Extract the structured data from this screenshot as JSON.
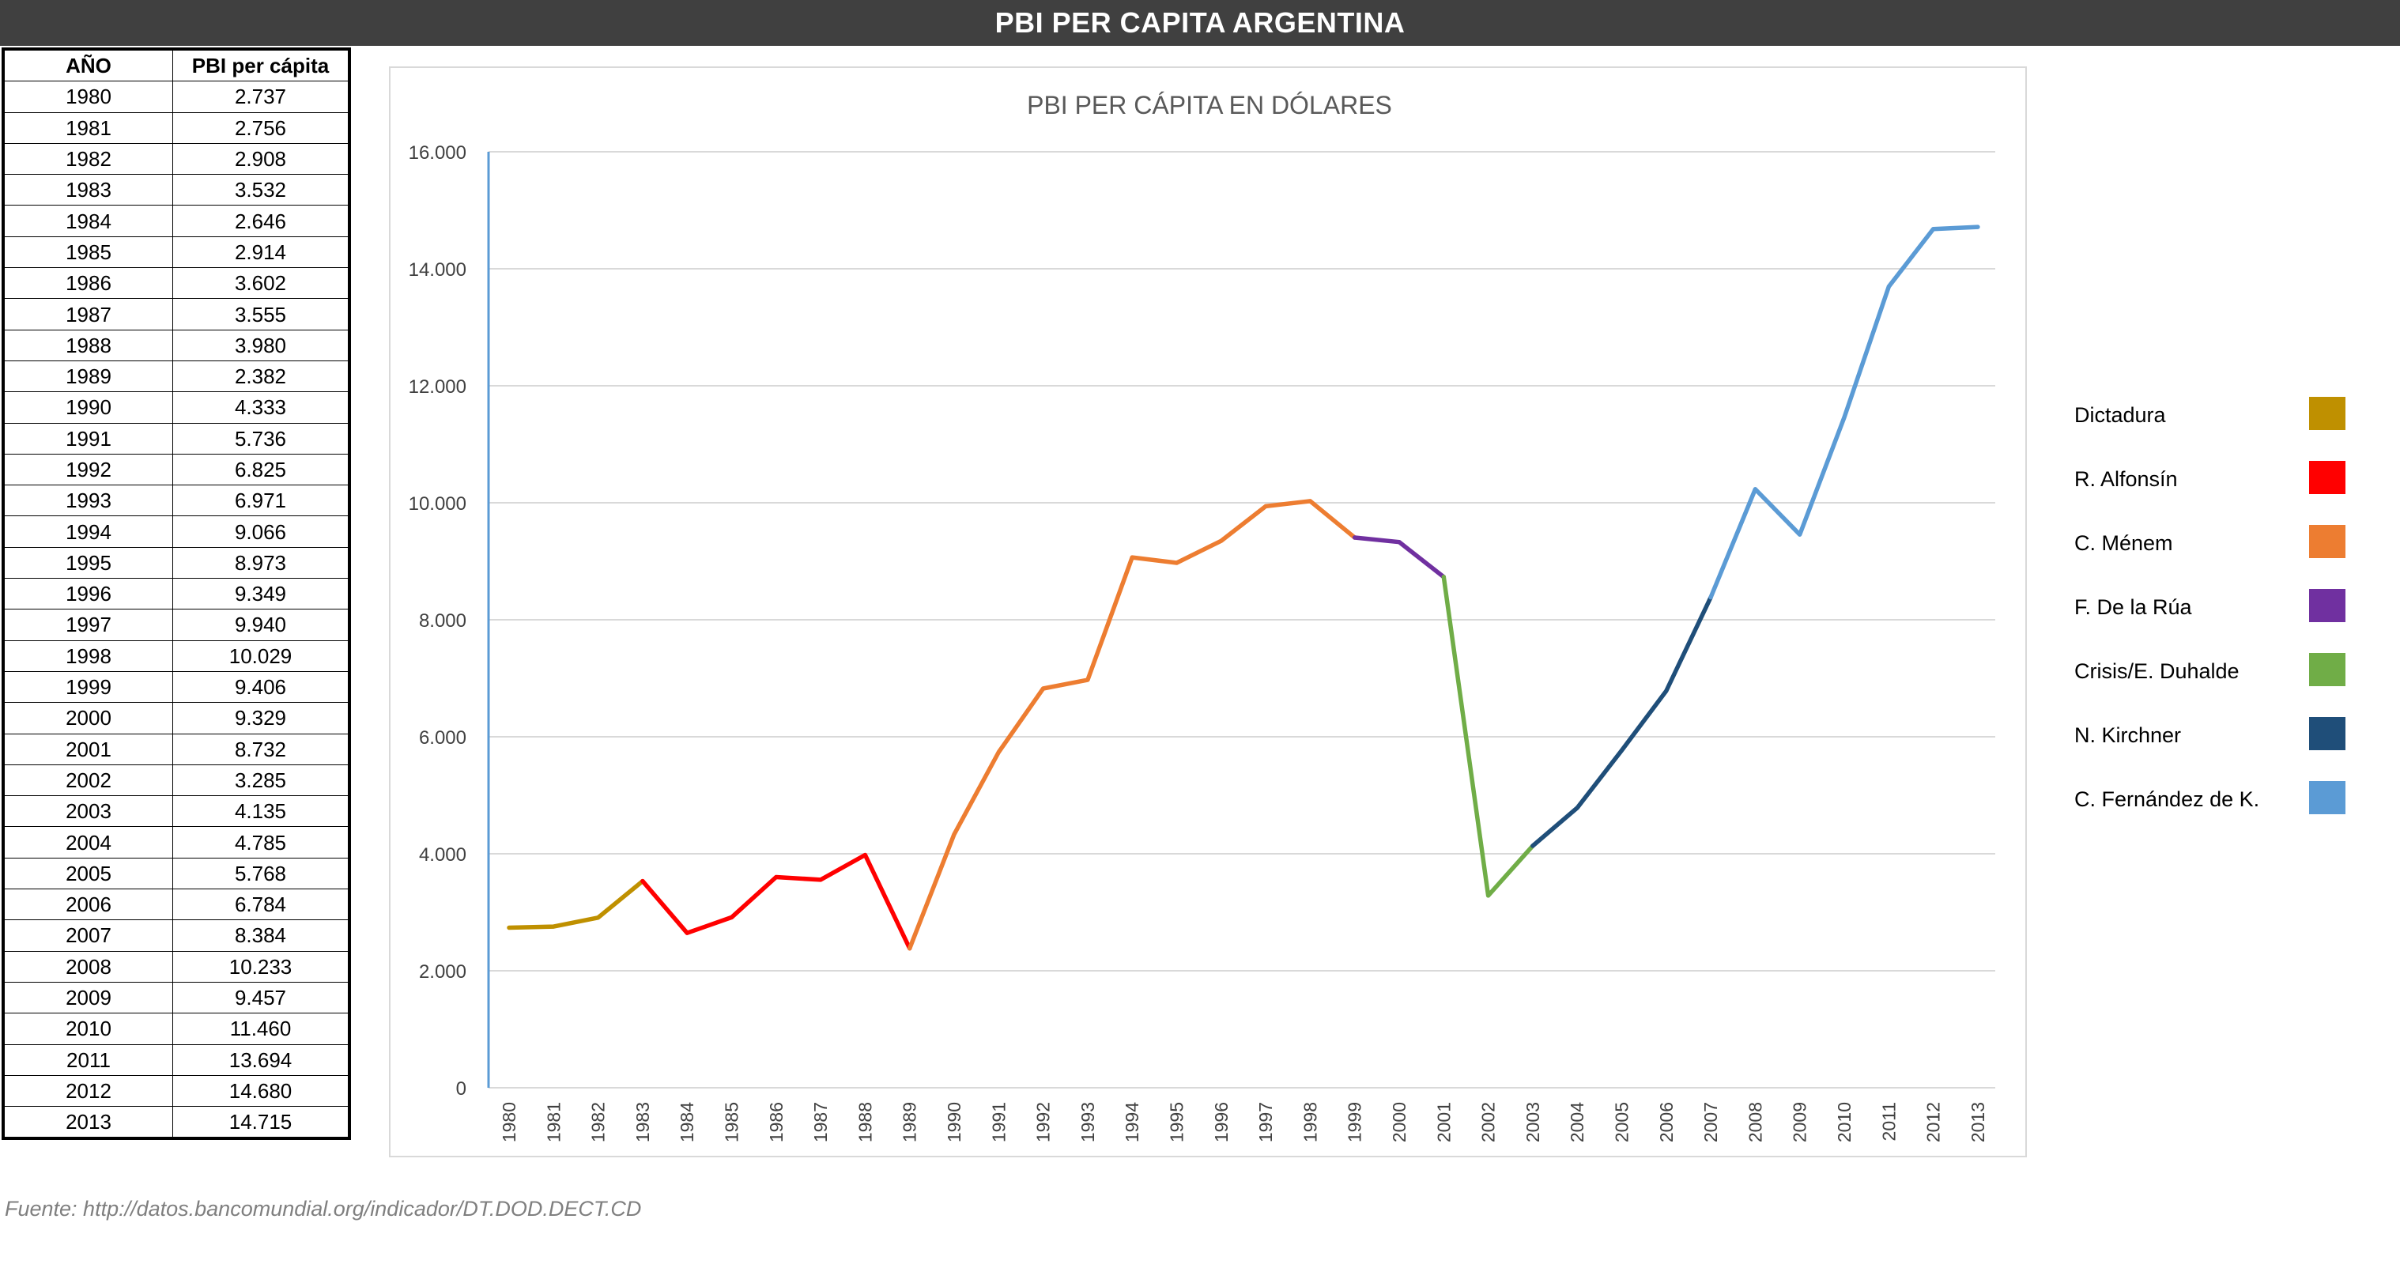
{
  "header": {
    "title": "PBI PER CAPITA ARGENTINA"
  },
  "table": {
    "headers": [
      "AÑO",
      "PBI per cápita"
    ],
    "rows": [
      [
        "1980",
        "2.737"
      ],
      [
        "1981",
        "2.756"
      ],
      [
        "1982",
        "2.908"
      ],
      [
        "1983",
        "3.532"
      ],
      [
        "1984",
        "2.646"
      ],
      [
        "1985",
        "2.914"
      ],
      [
        "1986",
        "3.602"
      ],
      [
        "1987",
        "3.555"
      ],
      [
        "1988",
        "3.980"
      ],
      [
        "1989",
        "2.382"
      ],
      [
        "1990",
        "4.333"
      ],
      [
        "1991",
        "5.736"
      ],
      [
        "1992",
        "6.825"
      ],
      [
        "1993",
        "6.971"
      ],
      [
        "1994",
        "9.066"
      ],
      [
        "1995",
        "8.973"
      ],
      [
        "1996",
        "9.349"
      ],
      [
        "1997",
        "9.940"
      ],
      [
        "1998",
        "10.029"
      ],
      [
        "1999",
        "9.406"
      ],
      [
        "2000",
        "9.329"
      ],
      [
        "2001",
        "8.732"
      ],
      [
        "2002",
        "3.285"
      ],
      [
        "2003",
        "4.135"
      ],
      [
        "2004",
        "4.785"
      ],
      [
        "2005",
        "5.768"
      ],
      [
        "2006",
        "6.784"
      ],
      [
        "2007",
        "8.384"
      ],
      [
        "2008",
        "10.233"
      ],
      [
        "2009",
        "9.457"
      ],
      [
        "2010",
        "11.460"
      ],
      [
        "2011",
        "13.694"
      ],
      [
        "2012",
        "14.680"
      ],
      [
        "2013",
        "14.715"
      ]
    ]
  },
  "chart_data": {
    "type": "line",
    "title": "PBI PER CÁPITA EN DÓLARES",
    "xlabel": "",
    "ylabel": "",
    "ylim": [
      0,
      16000
    ],
    "y_ticks": [
      0,
      2000,
      4000,
      6000,
      8000,
      10000,
      12000,
      14000,
      16000
    ],
    "y_tick_labels": [
      "0",
      "2.000",
      "4.000",
      "6.000",
      "8.000",
      "10.000",
      "12.000",
      "14.000",
      "16.000"
    ],
    "grid": true,
    "legend_position": "right",
    "x": [
      "1980",
      "1981",
      "1982",
      "1983",
      "1984",
      "1985",
      "1986",
      "1987",
      "1988",
      "1989",
      "1990",
      "1991",
      "1992",
      "1993",
      "1994",
      "1995",
      "1996",
      "1997",
      "1998",
      "1999",
      "2000",
      "2001",
      "2002",
      "2003",
      "2004",
      "2005",
      "2006",
      "2007",
      "2008",
      "2009",
      "2010",
      "2011",
      "2012",
      "2013"
    ],
    "values": [
      2737,
      2756,
      2908,
      3532,
      2646,
      2914,
      3602,
      3555,
      3980,
      2382,
      4333,
      5736,
      6825,
      6971,
      9066,
      8973,
      9349,
      9940,
      10029,
      9406,
      9329,
      8732,
      3285,
      4135,
      4785,
      5768,
      6784,
      8384,
      10233,
      9457,
      11460,
      13694,
      14680,
      14715
    ],
    "series": [
      {
        "name": "Dictadura",
        "color": "#bf9000",
        "from": "1980",
        "to": "1983"
      },
      {
        "name": "R. Alfonsín",
        "color": "#ff0000",
        "from": "1983",
        "to": "1989"
      },
      {
        "name": "C. Ménem",
        "color": "#ed7d31",
        "from": "1989",
        "to": "1999"
      },
      {
        "name": "F. De la Rúa",
        "color": "#7030a0",
        "from": "1999",
        "to": "2001"
      },
      {
        "name": "Crisis/E. Duhalde",
        "color": "#70ad47",
        "from": "2001",
        "to": "2003"
      },
      {
        "name": "N. Kirchner",
        "color": "#1f4e79",
        "from": "2003",
        "to": "2007"
      },
      {
        "name": "C. Fernández de K.",
        "color": "#5b9bd5",
        "from": "2007",
        "to": "2013"
      }
    ],
    "axis_color": "#5b9bd5",
    "grid_color": "#d9d9d9"
  },
  "source": "Fuente: http://datos.bancomundial.org/indicador/DT.DOD.DECT.CD"
}
